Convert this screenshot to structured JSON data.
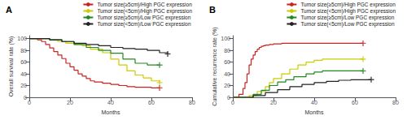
{
  "chart_data": [
    {
      "type": "step",
      "title": "A",
      "xlabel": "Months",
      "ylabel": "Overall survival rate (%)",
      "xlim": [
        0,
        80
      ],
      "ylim": [
        0,
        105
      ],
      "xticks": [
        0,
        20,
        40,
        60,
        80
      ],
      "yticks": [
        0,
        20,
        40,
        60,
        80,
        100
      ],
      "grid": false,
      "legend": "upper right",
      "marker": "+",
      "series": [
        {
          "name": "Tumor size(≥5cm)/High PGC expression",
          "color": "#cc2222",
          "x": [
            0,
            4,
            6,
            8,
            10,
            12,
            14,
            16,
            18,
            20,
            22,
            24,
            26,
            28,
            30,
            32,
            36,
            40,
            44,
            48,
            52,
            56,
            60,
            64
          ],
          "values": [
            100,
            98,
            95,
            90,
            84,
            78,
            72,
            66,
            58,
            52,
            46,
            40,
            36,
            32,
            28,
            26,
            24,
            22,
            20,
            18,
            17,
            17,
            16,
            16
          ]
        },
        {
          "name": "Tumor size(<5cm)/High PGC expression",
          "color": "#cccc00",
          "x": [
            0,
            8,
            10,
            14,
            18,
            22,
            26,
            30,
            36,
            40,
            44,
            48,
            52,
            56,
            60,
            64
          ],
          "values": [
            100,
            100,
            98,
            95,
            92,
            90,
            88,
            82,
            76,
            65,
            55,
            45,
            38,
            33,
            28,
            25
          ]
        },
        {
          "name": "Tumor size(≥5cm)/Low PGC expression",
          "color": "#228822",
          "x": [
            0,
            10,
            16,
            22,
            28,
            34,
            40,
            46,
            52,
            58,
            64
          ],
          "values": [
            100,
            98,
            95,
            90,
            85,
            80,
            75,
            65,
            58,
            55,
            55
          ]
        },
        {
          "name": "Tumor size(<5cm)/Low PGC expression",
          "color": "#222222",
          "x": [
            0,
            10,
            16,
            22,
            28,
            34,
            40,
            46,
            52,
            58,
            64,
            68
          ],
          "values": [
            100,
            98,
            95,
            92,
            90,
            88,
            85,
            83,
            82,
            80,
            76,
            74
          ]
        }
      ]
    },
    {
      "type": "step",
      "title": "B",
      "xlabel": "Months",
      "ylabel": "Cumulative recurrence rate (%)",
      "xlim": [
        0,
        80
      ],
      "ylim": [
        0,
        105
      ],
      "xticks": [
        0,
        20,
        40,
        60,
        80
      ],
      "yticks": [
        0,
        20,
        40,
        60,
        80,
        100
      ],
      "grid": false,
      "legend": "upper right",
      "marker": "+",
      "series": [
        {
          "name": "Tumor size(≥5cm)/High PGC expression",
          "color": "#cc2222",
          "x": [
            0,
            3,
            5,
            6,
            7,
            8,
            9,
            10,
            11,
            12,
            13,
            14,
            15,
            16,
            18,
            20,
            24,
            28,
            64
          ],
          "values": [
            0,
            5,
            15,
            25,
            40,
            55,
            65,
            72,
            78,
            82,
            85,
            87,
            88,
            89,
            90,
            91,
            92,
            92,
            92
          ]
        },
        {
          "name": "Tumor size(<5cm)/High PGC expression",
          "color": "#cccc00",
          "x": [
            0,
            8,
            12,
            16,
            18,
            20,
            24,
            28,
            32,
            36,
            40,
            44,
            48,
            64
          ],
          "values": [
            0,
            3,
            10,
            18,
            25,
            32,
            40,
            48,
            55,
            60,
            63,
            65,
            65,
            65
          ]
        },
        {
          "name": "Tumor size(≥5cm)/Low PGC expression",
          "color": "#228822",
          "x": [
            0,
            10,
            14,
            18,
            22,
            26,
            30,
            36,
            40,
            44,
            48,
            64
          ],
          "values": [
            0,
            5,
            12,
            20,
            26,
            30,
            35,
            40,
            43,
            45,
            45,
            45
          ]
        },
        {
          "name": "Tumor size(<5cm)/Low PGC expression",
          "color": "#222222",
          "x": [
            0,
            10,
            16,
            22,
            28,
            34,
            40,
            46,
            52,
            58,
            64,
            68
          ],
          "values": [
            0,
            3,
            8,
            13,
            18,
            22,
            25,
            27,
            29,
            30,
            30,
            30
          ]
        }
      ]
    }
  ]
}
